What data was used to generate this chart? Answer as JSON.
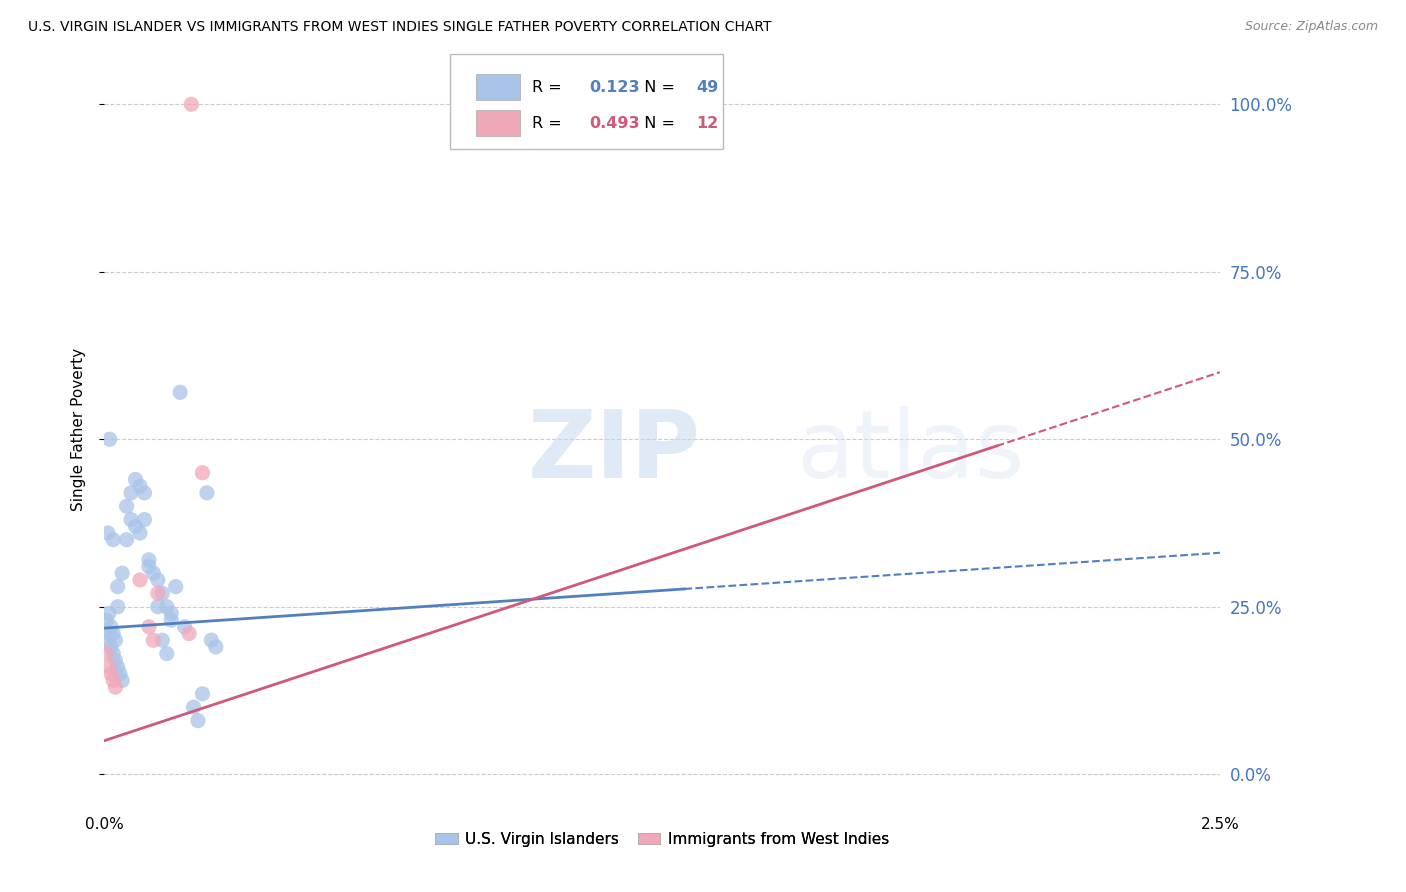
{
  "title": "U.S. VIRGIN ISLANDER VS IMMIGRANTS FROM WEST INDIES SINGLE FATHER POVERTY CORRELATION CHART",
  "source": "Source: ZipAtlas.com",
  "ylabel": "Single Father Poverty",
  "x_min": 0.0,
  "x_max": 0.025,
  "y_min": -0.05,
  "y_max": 1.08,
  "x_ticks": [
    0.0,
    0.025
  ],
  "x_tick_labels": [
    "0.0%",
    "2.5%"
  ],
  "y_ticks": [
    0.0,
    0.25,
    0.5,
    0.75,
    1.0
  ],
  "y_tick_labels": [
    "0%",
    "25.0%",
    "50.0%",
    "75.0%",
    "100.0%"
  ],
  "blue_color": "#a8c4e8",
  "pink_color": "#f0a8b8",
  "blue_line_color": "#5080c0",
  "pink_line_color": "#d05878",
  "grid_color": "#cccccc",
  "blue_R": 0.123,
  "blue_N": 49,
  "pink_R": 0.493,
  "pink_N": 12,
  "blue_label": "U.S. Virgin Islanders",
  "pink_label": "Immigrants from West Indies",
  "blue_line_x_solid_end": 0.013,
  "pink_line_x_solid_end": 0.02,
  "blue_line_intercept": 0.218,
  "blue_line_slope": 4.5,
  "pink_line_intercept": 0.05,
  "pink_line_slope": 22.0,
  "blue_x": [
    5e-05,
    0.0001,
    0.00015,
    0.0002,
    0.00025,
    0.0003,
    0.00035,
    0.0004,
    5e-05,
    0.0001,
    0.00015,
    0.0002,
    0.00025,
    0.0003,
    0.0004,
    0.0005,
    0.0006,
    0.0007,
    0.0008,
    0.0009,
    0.001,
    0.0011,
    0.0012,
    0.0013,
    0.0014,
    0.0015,
    0.0016,
    0.0017,
    0.0018,
    0.0005,
    0.0006,
    0.0007,
    0.0008,
    0.0009,
    0.001,
    0.002,
    0.0021,
    0.0022,
    0.0023,
    0.0024,
    0.0025,
    0.0002,
    0.0003,
    0.0012,
    0.0013,
    0.0014,
    0.00012,
    8e-05,
    0.0015
  ],
  "blue_y": [
    0.2,
    0.21,
    0.19,
    0.18,
    0.17,
    0.16,
    0.15,
    0.14,
    0.23,
    0.24,
    0.22,
    0.21,
    0.2,
    0.25,
    0.3,
    0.35,
    0.38,
    0.37,
    0.36,
    0.38,
    0.32,
    0.3,
    0.29,
    0.27,
    0.25,
    0.24,
    0.28,
    0.57,
    0.22,
    0.4,
    0.42,
    0.44,
    0.43,
    0.42,
    0.31,
    0.1,
    0.08,
    0.12,
    0.42,
    0.2,
    0.19,
    0.35,
    0.28,
    0.25,
    0.2,
    0.18,
    0.5,
    0.36,
    0.23
  ],
  "pink_x": [
    5e-05,
    0.0001,
    0.00015,
    0.0002,
    0.00025,
    0.0008,
    0.001,
    0.0011,
    0.0012,
    0.0019,
    0.00195,
    0.0022
  ],
  "pink_y": [
    0.18,
    0.16,
    0.15,
    0.14,
    0.13,
    0.29,
    0.22,
    0.2,
    0.27,
    0.21,
    1.0,
    0.45
  ],
  "figsize": [
    14.06,
    8.92
  ],
  "dpi": 100
}
